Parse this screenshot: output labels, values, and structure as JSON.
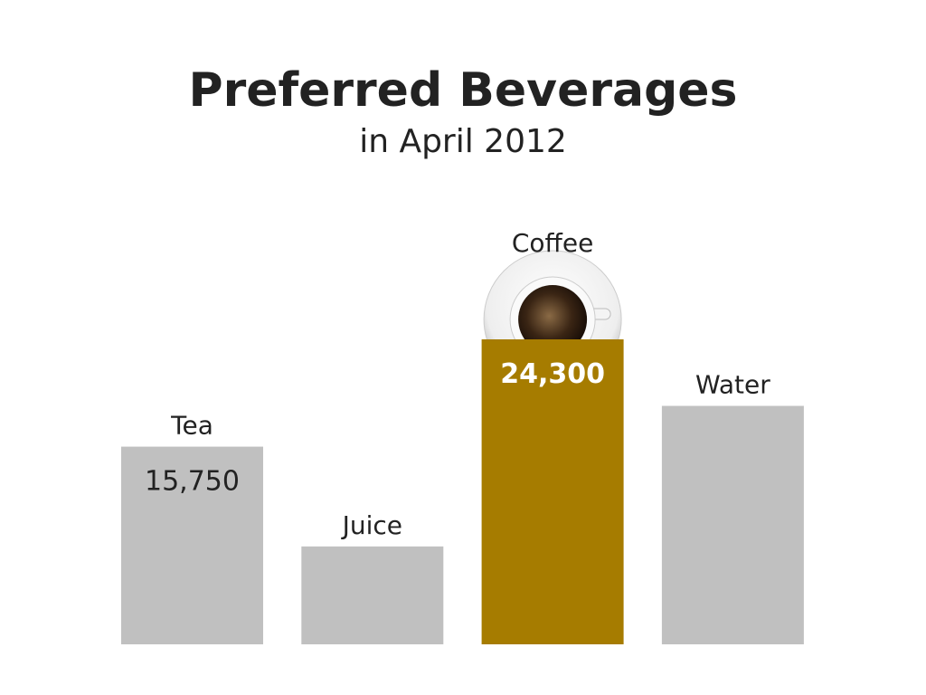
{
  "chart_data": {
    "type": "bar",
    "title": "Preferred Beverages",
    "subtitle": "in April 2012",
    "categories": [
      "Tea",
      "Juice",
      "Coffee",
      "Water"
    ],
    "values": [
      15750,
      7800,
      24300,
      19000
    ],
    "value_labels": [
      "15,750",
      null,
      "24,300",
      null
    ],
    "colors": [
      "#c0c0c0",
      "#c0c0c0",
      "#a67c00",
      "#c0c0c0"
    ]
  }
}
